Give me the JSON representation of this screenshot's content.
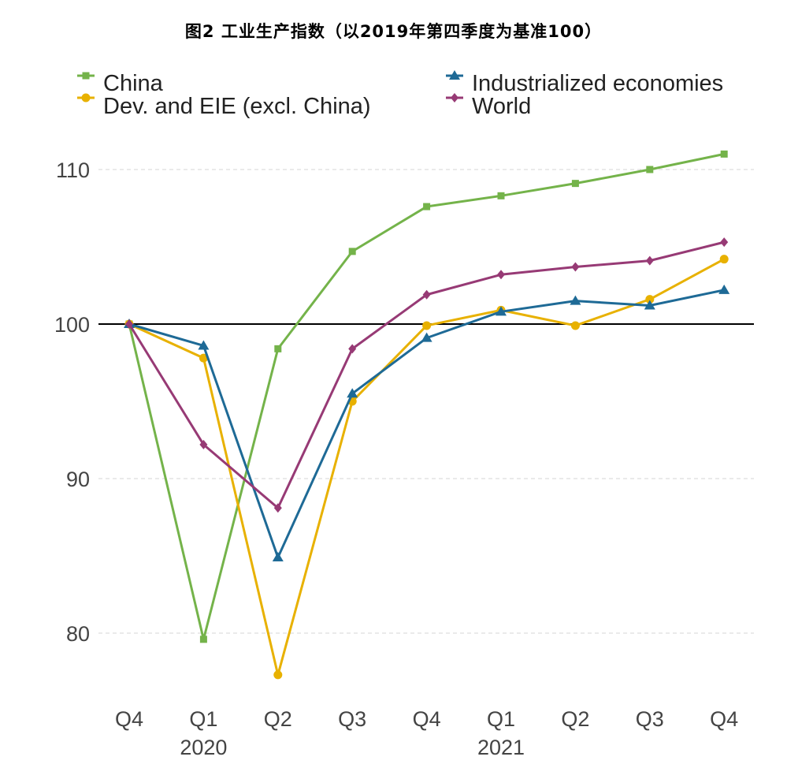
{
  "chart_data": {
    "type": "line",
    "title": "图2 工业生产指数（以2019年第四季度为基准100）",
    "xlabel": "",
    "ylabel": "",
    "categories": [
      "Q4",
      "Q1",
      "Q2",
      "Q3",
      "Q4",
      "Q1",
      "Q2",
      "Q3",
      "Q4"
    ],
    "year_labels": [
      {
        "category_index": 1,
        "label": "2020"
      },
      {
        "category_index": 5,
        "label": "2021"
      }
    ],
    "ylim": [
      75.5,
      113.5
    ],
    "yticks": [
      80,
      90,
      100,
      110
    ],
    "reference_line": 100,
    "grid": "horizontal-dashed",
    "legend_position": "top",
    "series": [
      {
        "name": "China",
        "color": "#74b34a",
        "marker": "square",
        "values": [
          100,
          79.6,
          98.4,
          104.7,
          107.6,
          108.3,
          109.1,
          110.0,
          111.0
        ]
      },
      {
        "name": "Dev. and EIE (excl. China)",
        "color": "#e8b100",
        "marker": "circle",
        "values": [
          100,
          97.8,
          77.3,
          95.0,
          99.9,
          100.9,
          99.9,
          101.6,
          104.2
        ]
      },
      {
        "name": "Industrialized economies",
        "color": "#1e6a96",
        "marker": "triangle",
        "values": [
          100,
          98.6,
          84.9,
          95.5,
          99.1,
          100.8,
          101.5,
          101.2,
          102.2
        ]
      },
      {
        "name": "World",
        "color": "#973a75",
        "marker": "diamond",
        "values": [
          100,
          92.2,
          88.1,
          98.4,
          101.9,
          103.2,
          103.7,
          104.1,
          105.3
        ]
      }
    ]
  }
}
